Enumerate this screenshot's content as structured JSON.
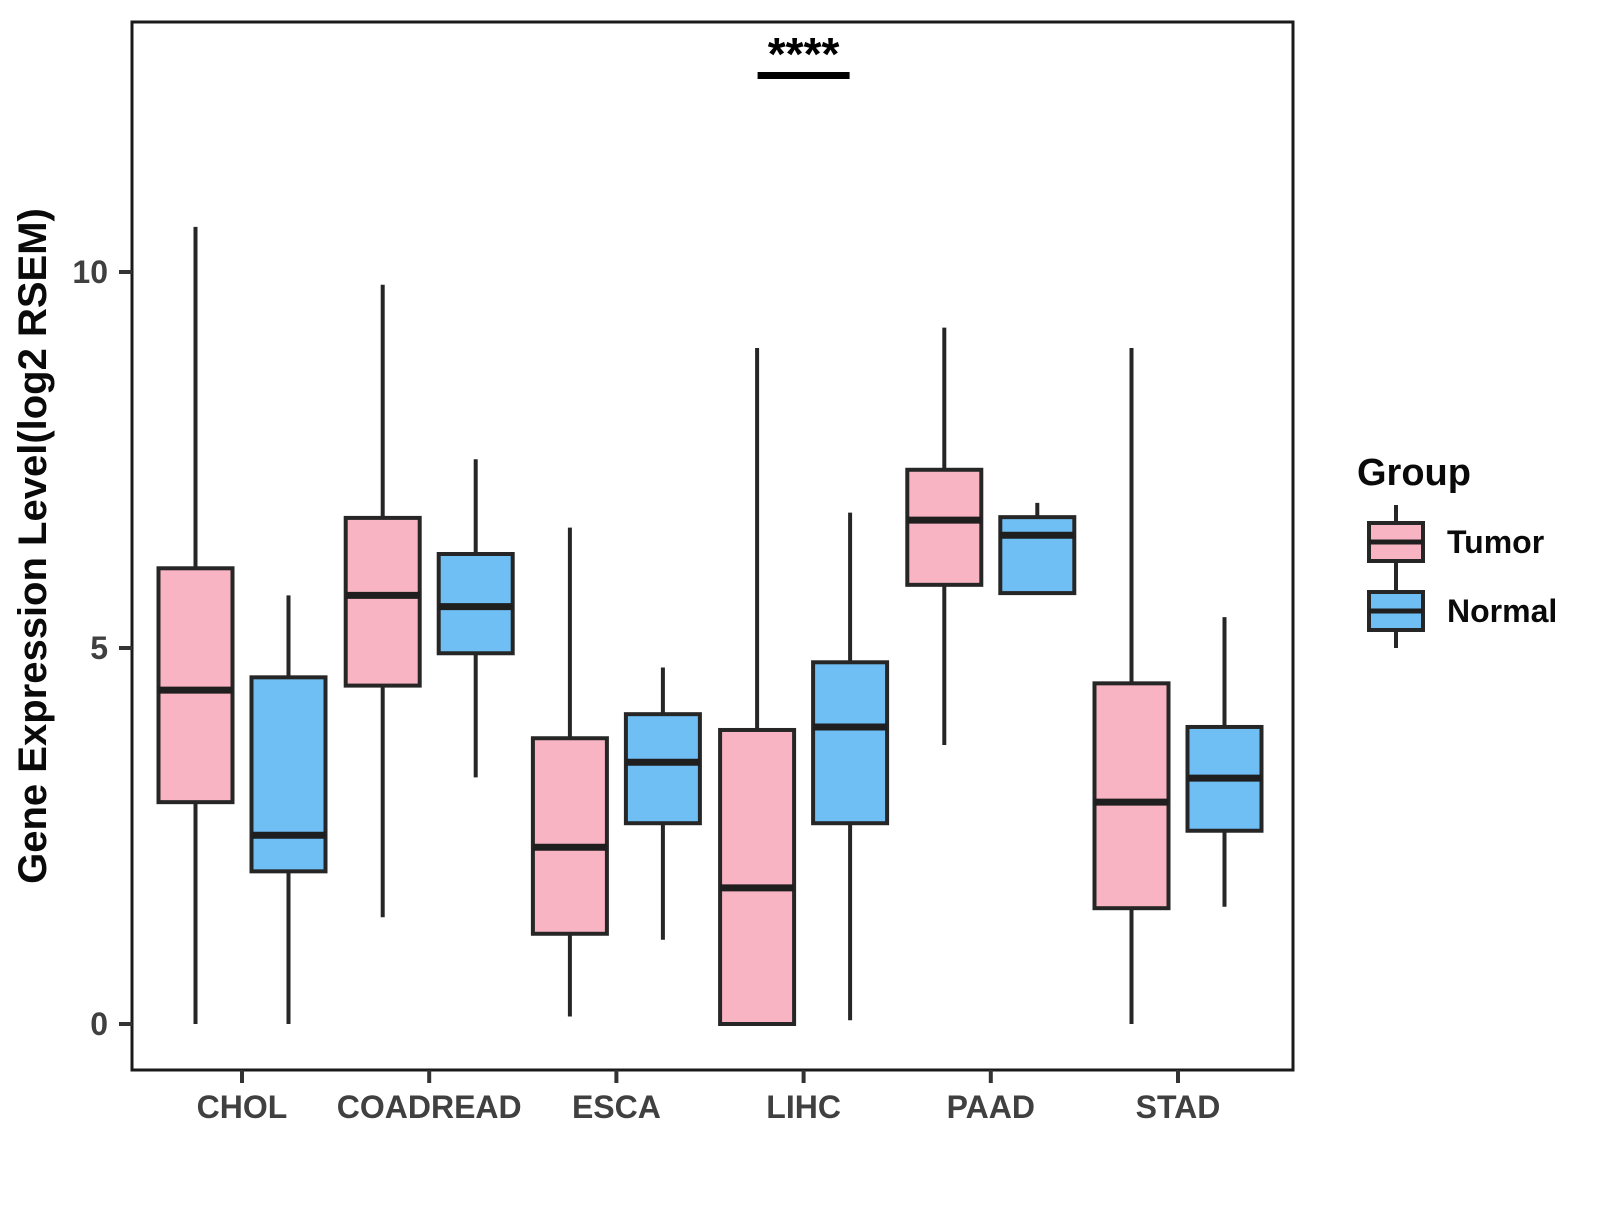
{
  "chart_data": {
    "type": "grouped_boxplot",
    "title": "",
    "xlabel": "",
    "ylabel": "Gene Expression Level(log2 RSEM)",
    "legend_title": "Group",
    "legend_position": "right",
    "grid": false,
    "yticks": [
      0,
      5,
      10
    ],
    "ylim": [
      -0.65,
      13.3
    ],
    "categories": [
      "CHOL",
      "COADREAD",
      "ESCA",
      "LIHC",
      "PAAD",
      "STAD"
    ],
    "groups": [
      {
        "name": "Tumor",
        "fill": "#F9B4C3",
        "stroke": "#262626"
      },
      {
        "name": "Normal",
        "fill": "#70BFF4",
        "stroke": "#262626"
      }
    ],
    "significance": {
      "label": "****",
      "category": "LIHC"
    },
    "series": [
      {
        "name": "Tumor",
        "boxes": [
          {
            "category": "CHOL",
            "whisker_low": 0.0,
            "q1": 2.95,
            "median": 4.44,
            "q3": 6.06,
            "whisker_high": 10.6
          },
          {
            "category": "COADREAD",
            "whisker_low": 1.42,
            "q1": 4.5,
            "median": 5.7,
            "q3": 6.73,
            "whisker_high": 9.83
          },
          {
            "category": "ESCA",
            "whisker_low": 0.1,
            "q1": 1.2,
            "median": 2.35,
            "q3": 3.8,
            "whisker_high": 6.6
          },
          {
            "category": "LIHC",
            "whisker_low": 0.0,
            "q1": 0.0,
            "median": 1.81,
            "q3": 3.91,
            "whisker_high": 8.99
          },
          {
            "category": "PAAD",
            "whisker_low": 3.71,
            "q1": 5.84,
            "median": 6.7,
            "q3": 7.37,
            "whisker_high": 9.26
          },
          {
            "category": "STAD",
            "whisker_low": 0.0,
            "q1": 1.54,
            "median": 2.95,
            "q3": 4.53,
            "whisker_high": 8.99
          }
        ]
      },
      {
        "name": "Normal",
        "boxes": [
          {
            "category": "CHOL",
            "whisker_low": 0.0,
            "q1": 2.03,
            "median": 2.51,
            "q3": 4.61,
            "whisker_high": 5.7
          },
          {
            "category": "COADREAD",
            "whisker_low": 3.28,
            "q1": 4.93,
            "median": 5.55,
            "q3": 6.25,
            "whisker_high": 7.51
          },
          {
            "category": "ESCA",
            "whisker_low": 1.12,
            "q1": 2.67,
            "median": 3.48,
            "q3": 4.12,
            "whisker_high": 4.74
          },
          {
            "category": "LIHC",
            "whisker_low": 0.05,
            "q1": 2.67,
            "median": 3.95,
            "q3": 4.81,
            "whisker_high": 6.8
          },
          {
            "category": "PAAD",
            "whisker_low": 5.73,
            "q1": 5.73,
            "median": 6.5,
            "q3": 6.74,
            "whisker_high": 6.93
          },
          {
            "category": "STAD",
            "whisker_low": 1.56,
            "q1": 2.57,
            "median": 3.27,
            "q3": 3.95,
            "whisker_high": 5.41
          }
        ]
      }
    ]
  }
}
